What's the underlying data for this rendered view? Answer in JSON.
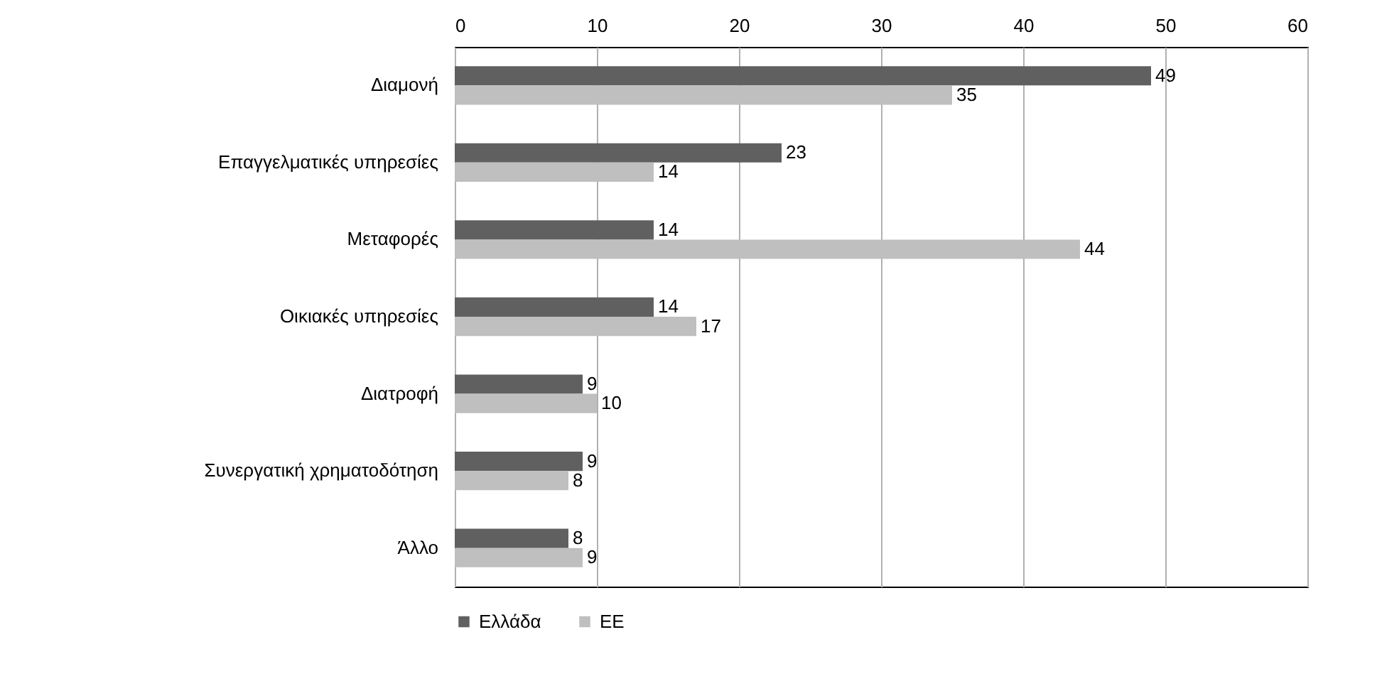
{
  "chart_data": {
    "type": "bar",
    "orientation": "horizontal",
    "categories": [
      "Διαμονή",
      "Επαγγελματικές υπηρεσίες",
      "Μεταφορές",
      "Οικιακές υπηρεσίες",
      "Διατροφή",
      "Συνεργατική χρηματοδότηση",
      "Άλλο"
    ],
    "series": [
      {
        "name": "Ελλάδα",
        "color": "#606060",
        "values": [
          49,
          23,
          14,
          14,
          9,
          9,
          8
        ]
      },
      {
        "name": "ΕΕ",
        "color": "#bfbfbf",
        "values": [
          35,
          14,
          44,
          17,
          10,
          8,
          9
        ]
      }
    ],
    "xlim": [
      0,
      60
    ],
    "xticks": [
      0,
      10,
      20,
      30,
      40,
      50,
      60
    ],
    "grid": "x",
    "legend": "bottom",
    "data_labels": true
  }
}
